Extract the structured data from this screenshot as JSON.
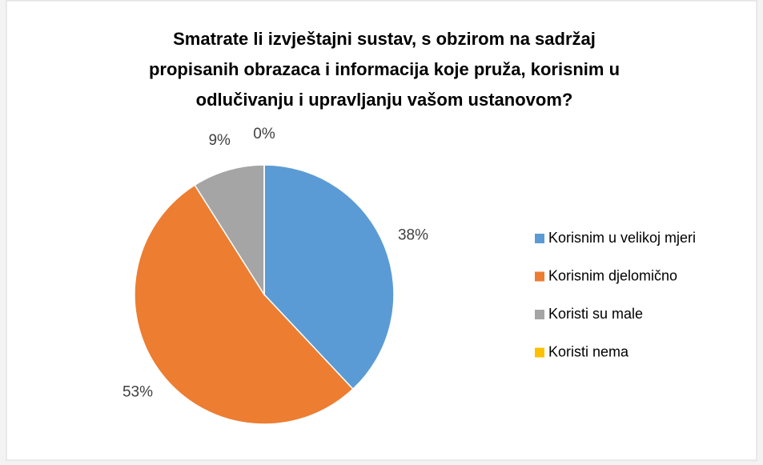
{
  "chart_data": {
    "type": "pie",
    "title": [
      "Smatrate li izvještajni sustav, s obzirom na sadržaj",
      "propisanih obrazaca i informacija koje pruža, korisnim u",
      "odlučivanju  i upravljanju  vašom ustanovom?"
    ],
    "categories": [
      "Korisnim u velikoj mjeri",
      "Korisnim djelomično",
      "Koristi su male",
      "Koristi nema"
    ],
    "values": [
      38,
      53,
      9,
      0
    ],
    "value_labels": [
      "38%",
      "53%",
      "9%",
      "0%"
    ],
    "colors": [
      "#5b9bd5",
      "#ed7d31",
      "#a5a5a5",
      "#ffc000"
    ],
    "legend": "right"
  }
}
